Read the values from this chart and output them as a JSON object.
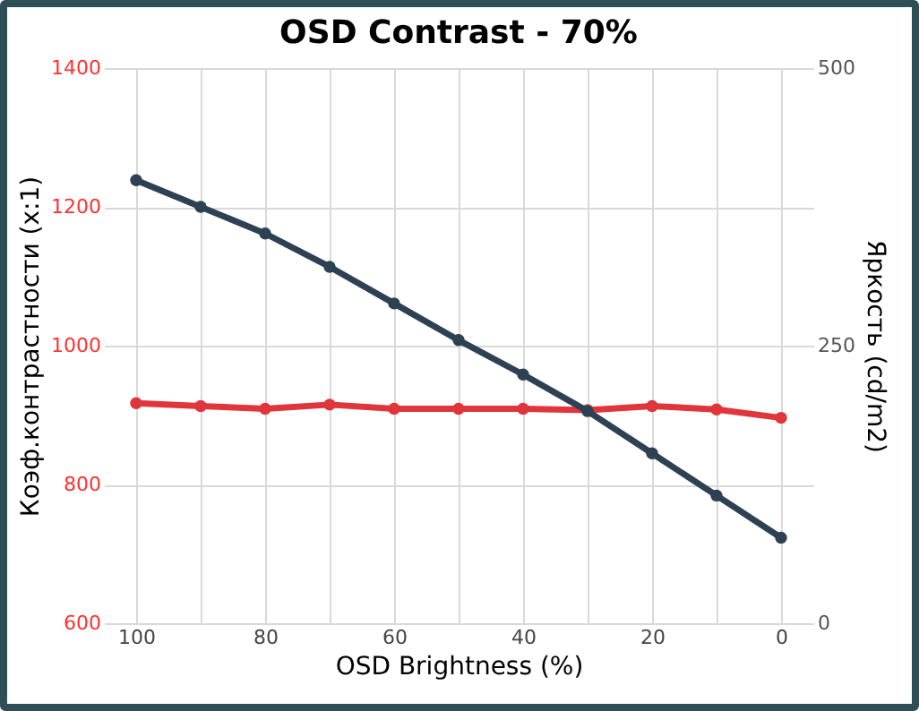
{
  "chart_data": {
    "type": "line",
    "title": "OSD Contrast - 70%",
    "xlabel": "OSD Brightness (%)",
    "ylabel": "Коэф.контрастности  (x:1)",
    "y2label": "Яркость (cd/m2)",
    "categories": [
      "100",
      null,
      "80",
      null,
      "60",
      null,
      "40",
      null,
      "20",
      null,
      "0"
    ],
    "series": [
      {
        "color": "#e0353b",
        "values": [
          917,
          913,
          909,
          915,
          909,
          909,
          909,
          907,
          913,
          908,
          896
        ]
      },
      {
        "color": "#2e4153",
        "axis": "y2",
        "values": [
          399,
          375,
          351,
          321,
          288,
          255,
          224,
          191,
          153,
          115,
          77
        ]
      }
    ],
    "ylim": [
      600,
      1400
    ],
    "yticks": [
      600,
      800,
      1000,
      1200,
      1400
    ],
    "y2lim": [
      0,
      500
    ],
    "y2ticks": [
      0,
      250,
      500
    ],
    "grid": true,
    "marker": "circle",
    "line_style": "solid"
  }
}
